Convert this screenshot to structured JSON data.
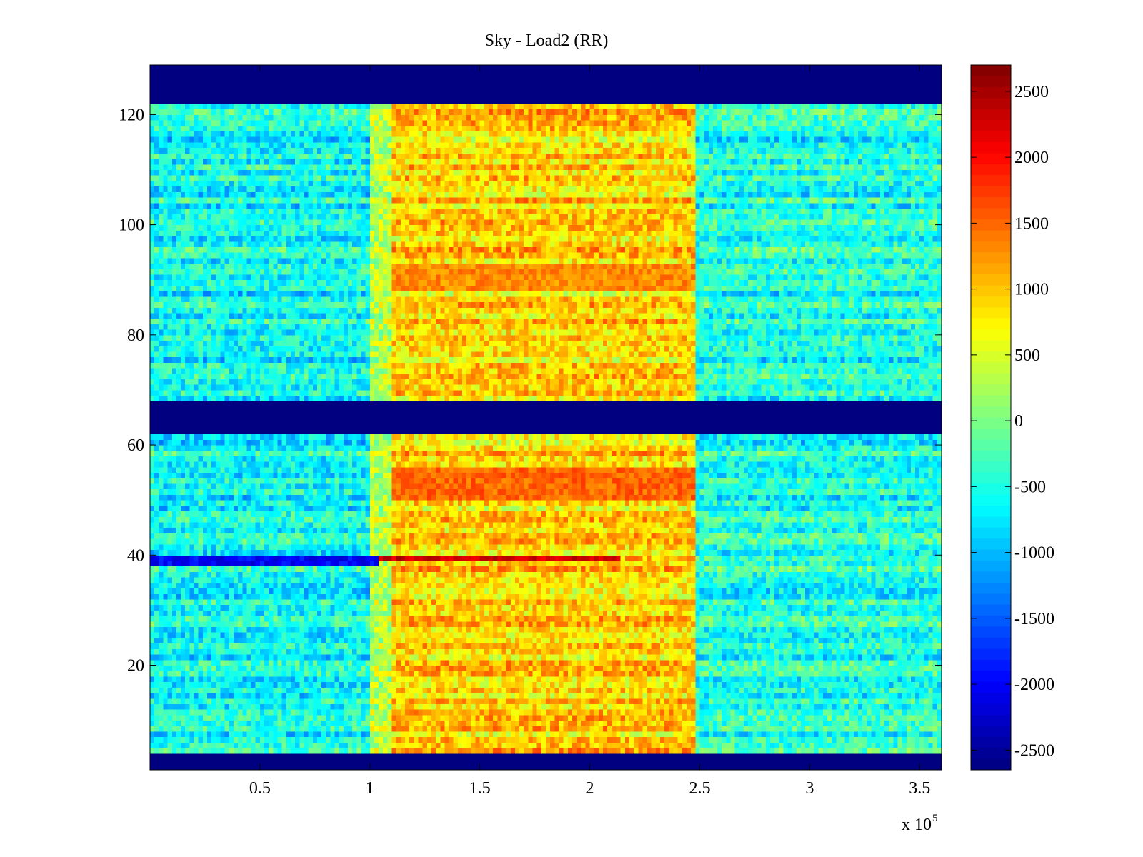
{
  "figure": {
    "title": "Sky - Load2 (RR)",
    "x_multiplier_base": "x 10",
    "x_multiplier_exponent": "5"
  },
  "chart_data": {
    "type": "heatmap",
    "title": "Sky - Load2 (RR)",
    "xlabel": "",
    "ylabel": "",
    "colormap": "jet",
    "xlim": [
      0,
      360000
    ],
    "ylim": [
      1,
      129
    ],
    "clim": [
      -2650,
      2700
    ],
    "x_ticks": [
      50000,
      100000,
      150000,
      200000,
      250000,
      300000,
      350000
    ],
    "x_tick_labels": [
      "0.5",
      "1",
      "1.5",
      "2",
      "2.5",
      "3",
      "3.5"
    ],
    "x_scale_factor": "x 10^5",
    "y_ticks": [
      20,
      40,
      60,
      80,
      100,
      120
    ],
    "y_tick_labels": [
      "20",
      "40",
      "60",
      "80",
      "100",
      "120"
    ],
    "colorbar_ticks": [
      2500,
      2000,
      1500,
      1000,
      500,
      0,
      -500,
      -1000,
      -1500,
      -2000,
      -2500
    ],
    "colorbar_tick_labels": [
      "2500",
      "2000",
      "1500",
      "1000",
      "500",
      "0",
      "-500",
      "-1000",
      "-1500",
      "-2000",
      "-2500"
    ],
    "masked_row_ranges": [
      [
        1,
        4
      ],
      [
        62,
        68
      ],
      [
        122,
        129
      ]
    ],
    "segments_x": [
      0,
      100000,
      110000,
      248000,
      360000
    ],
    "segment_mean_values": [
      -600,
      300,
      900,
      -500
    ],
    "notable_features": [
      {
        "rows": [
          38,
          40
        ],
        "x_range": [
          0,
          105000
        ],
        "value": -2000
      },
      {
        "rows": [
          39,
          40
        ],
        "x_range": [
          105000,
          215000
        ],
        "value": 2300
      },
      {
        "rows": [
          50,
          56
        ],
        "x_range": [
          110000,
          248000
        ],
        "value": 1500
      },
      {
        "rows": [
          88,
          93
        ],
        "x_range": [
          110000,
          248000
        ],
        "value": 1300
      }
    ]
  }
}
